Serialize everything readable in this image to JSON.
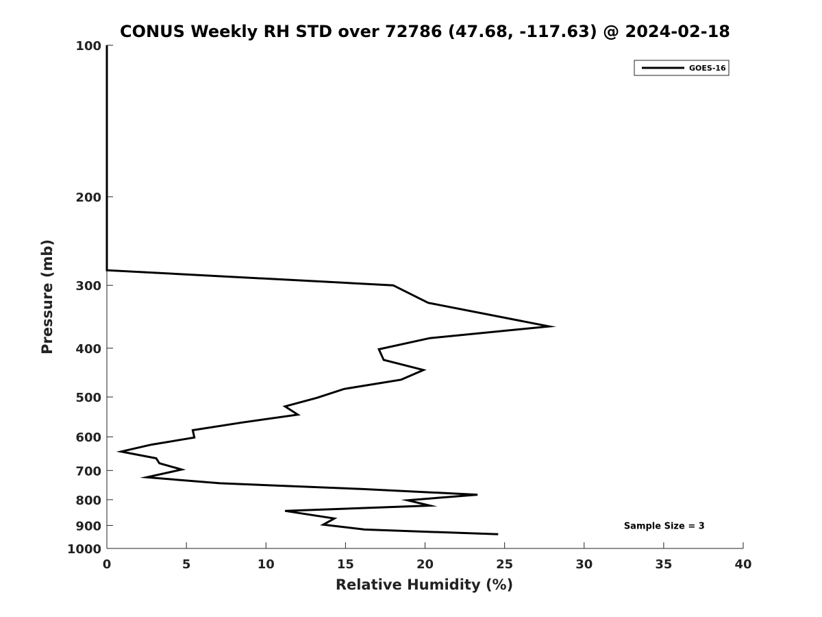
{
  "chart_data": {
    "type": "line",
    "title": "CONUS Weekly RH STD over 72786 (47.68, -117.63) @ 2024-02-18",
    "xlabel": "Relative Humidity (%)",
    "ylabel": "Pressure (mb)",
    "xlim": [
      0,
      40
    ],
    "ylim": [
      1000,
      100
    ],
    "yscale": "log",
    "y_reversed": true,
    "grid": false,
    "legend_position": "top-right",
    "x_ticks": [
      "0",
      "5",
      "10",
      "15",
      "20",
      "25",
      "30",
      "35",
      "40"
    ],
    "y_ticks": [
      "100",
      "200",
      "300",
      "400",
      "500",
      "600",
      "700",
      "800",
      "900",
      "1000"
    ],
    "series": [
      {
        "name": "GOES-16",
        "color": "#000000",
        "points": [
          {
            "x": 0.0,
            "y": 100
          },
          {
            "x": 0.0,
            "y": 150
          },
          {
            "x": 0.0,
            "y": 200
          },
          {
            "x": 0.0,
            "y": 250
          },
          {
            "x": 0.0,
            "y": 280
          },
          {
            "x": 18.0,
            "y": 300
          },
          {
            "x": 20.2,
            "y": 325
          },
          {
            "x": 27.8,
            "y": 362
          },
          {
            "x": 20.3,
            "y": 382
          },
          {
            "x": 17.1,
            "y": 402
          },
          {
            "x": 17.4,
            "y": 422
          },
          {
            "x": 19.9,
            "y": 442
          },
          {
            "x": 18.5,
            "y": 462
          },
          {
            "x": 14.9,
            "y": 482
          },
          {
            "x": 13.2,
            "y": 502
          },
          {
            "x": 11.2,
            "y": 522
          },
          {
            "x": 12.0,
            "y": 542
          },
          {
            "x": 8.5,
            "y": 562
          },
          {
            "x": 5.4,
            "y": 582
          },
          {
            "x": 5.5,
            "y": 602
          },
          {
            "x": 2.8,
            "y": 622
          },
          {
            "x": 0.9,
            "y": 642
          },
          {
            "x": 3.1,
            "y": 662
          },
          {
            "x": 3.3,
            "y": 677
          },
          {
            "x": 4.7,
            "y": 697
          },
          {
            "x": 2.5,
            "y": 722
          },
          {
            "x": 7.1,
            "y": 742
          },
          {
            "x": 16.1,
            "y": 762
          },
          {
            "x": 23.3,
            "y": 782
          },
          {
            "x": 18.9,
            "y": 802
          },
          {
            "x": 20.3,
            "y": 822
          },
          {
            "x": 11.2,
            "y": 842
          },
          {
            "x": 14.3,
            "y": 872
          },
          {
            "x": 13.6,
            "y": 897
          },
          {
            "x": 16.2,
            "y": 917
          },
          {
            "x": 24.6,
            "y": 937
          }
        ]
      }
    ],
    "annotations": [
      {
        "text": "Sample Size = 3",
        "x": 32.5,
        "y": 900
      }
    ]
  }
}
